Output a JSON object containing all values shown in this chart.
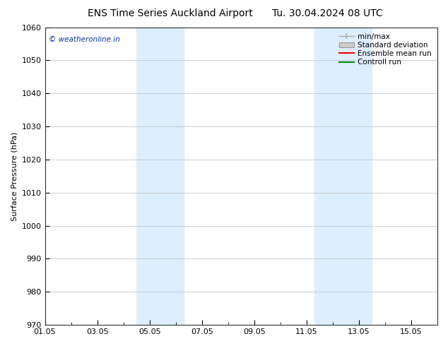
{
  "title": "ENS Time Series Auckland Airport",
  "title2": "Tu. 30.04.2024 08 UTC",
  "ylabel": "Surface Pressure (hPa)",
  "ylim": [
    970,
    1060
  ],
  "yticks": [
    970,
    980,
    990,
    1000,
    1010,
    1020,
    1030,
    1040,
    1050,
    1060
  ],
  "xlim": [
    0,
    15
  ],
  "xtick_labels": [
    "01.05",
    "03.05",
    "05.05",
    "07.05",
    "09.05",
    "11.05",
    "13.05",
    "15.05"
  ],
  "xtick_positions": [
    0,
    2,
    4,
    6,
    8,
    10,
    12,
    14
  ],
  "blue_bands": [
    {
      "xmin": 3.5,
      "xmax": 5.3
    },
    {
      "xmin": 10.3,
      "xmax": 12.5
    }
  ],
  "band_color": "#ddeeff",
  "watermark": "© weatheronline.in",
  "watermark_color": "#003399",
  "legend_items": [
    {
      "label": "min/max",
      "color": "#aaaaaa",
      "style": "minmax"
    },
    {
      "label": "Standard deviation",
      "color": "#cccccc",
      "style": "box"
    },
    {
      "label": "Ensemble mean run",
      "color": "#ff0000",
      "style": "line"
    },
    {
      "label": "Controll run",
      "color": "#008800",
      "style": "line"
    }
  ],
  "background_color": "#ffffff",
  "grid_color": "#bbbbbb",
  "title_fontsize": 10,
  "axis_fontsize": 8,
  "legend_fontsize": 7.5
}
